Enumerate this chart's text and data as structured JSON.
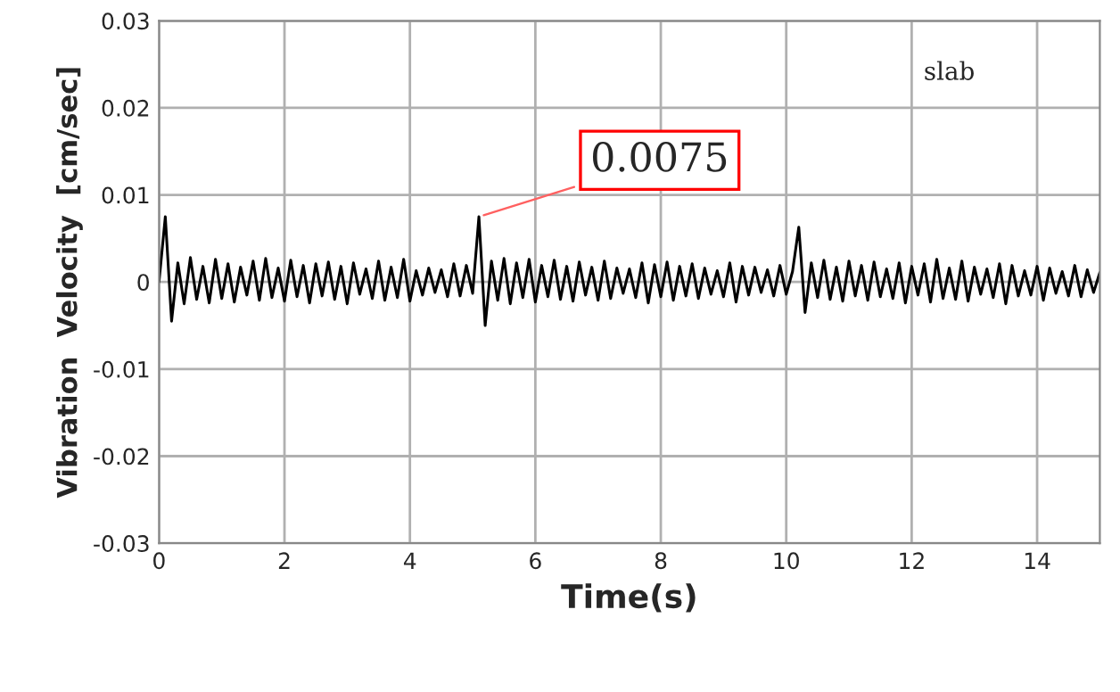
{
  "chart_data": {
    "type": "line",
    "xlabel": "Time(s)",
    "ylabel": "Vibration  Velocity  [cm/sec]",
    "xlim": [
      0,
      15
    ],
    "xticks": [
      0,
      2,
      4,
      6,
      8,
      10,
      12,
      14
    ],
    "ylim": [
      -0.03,
      0.03
    ],
    "yticks": [
      -0.03,
      -0.02,
      -0.01,
      0,
      0.01,
      0.02,
      0.03
    ],
    "grid": true,
    "annotations": [
      {
        "text": "0.0075",
        "x": 5.1,
        "y": 0.0075
      },
      "slab"
    ],
    "series": [
      {
        "color": "#000000",
        "x": [
          0,
          0.1,
          0.2,
          0.3,
          0.4,
          0.5,
          0.6,
          0.7,
          0.8,
          0.9,
          1,
          1.1,
          1.2,
          1.3,
          1.4,
          1.5,
          1.6,
          1.7,
          1.8,
          1.9,
          2,
          2.1,
          2.2,
          2.3,
          2.4,
          2.5,
          2.6,
          2.7,
          2.8,
          2.9,
          3,
          3.1,
          3.2,
          3.3,
          3.4,
          3.5,
          3.6,
          3.7,
          3.8,
          3.9,
          4,
          4.1,
          4.2,
          4.3,
          4.4,
          4.5,
          4.6,
          4.7,
          4.8,
          4.9,
          5,
          5.1,
          5.2,
          5.3,
          5.4,
          5.5,
          5.6,
          5.7,
          5.8,
          5.9,
          6,
          6.1,
          6.2,
          6.3,
          6.4,
          6.5,
          6.6,
          6.7,
          6.8,
          6.9,
          7,
          7.1,
          7.2,
          7.3,
          7.4,
          7.5,
          7.6,
          7.7,
          7.8,
          7.9,
          8,
          8.1,
          8.2,
          8.3,
          8.4,
          8.5,
          8.6,
          8.7,
          8.8,
          8.9,
          9,
          9.1,
          9.2,
          9.3,
          9.4,
          9.5,
          9.6,
          9.7,
          9.8,
          9.9,
          10,
          10.1,
          10.2,
          10.3,
          10.4,
          10.5,
          10.6,
          10.7,
          10.8,
          10.9,
          11,
          11.1,
          11.2,
          11.3,
          11.4,
          11.5,
          11.6,
          11.7,
          11.8,
          11.9,
          12,
          12.1,
          12.2,
          12.3,
          12.4,
          12.5,
          12.6,
          12.7,
          12.8,
          12.9,
          13,
          13.1,
          13.2,
          13.3,
          13.4,
          13.5,
          13.6,
          13.7,
          13.8,
          13.9,
          14,
          14.1,
          14.2,
          14.3,
          14.4,
          14.5,
          14.6,
          14.7,
          14.8,
          14.9,
          15
        ],
        "values": [
          0,
          0.0075,
          -0.0045,
          0.0022,
          -0.0025,
          0.0028,
          -0.002,
          0.0018,
          -0.0024,
          0.0026,
          -0.0019,
          0.0021,
          -0.0023,
          0.0017,
          -0.0015,
          0.0024,
          -0.0021,
          0.0027,
          -0.0018,
          0.0016,
          -0.0022,
          0.0025,
          -0.0017,
          0.0019,
          -0.0024,
          0.0021,
          -0.0016,
          0.0023,
          -0.002,
          0.0018,
          -0.0025,
          0.0022,
          -0.0014,
          0.0015,
          -0.0019,
          0.0024,
          -0.0021,
          0.0017,
          -0.0018,
          0.0026,
          -0.0022,
          0.0013,
          -0.0015,
          0.0016,
          -0.0012,
          0.0014,
          -0.0017,
          0.0021,
          -0.0016,
          0.0019,
          -0.0013,
          0.0075,
          -0.005,
          0.0024,
          -0.0021,
          0.0027,
          -0.0025,
          0.0022,
          -0.0018,
          0.0026,
          -0.0023,
          0.0019,
          -0.0017,
          0.0025,
          -0.002,
          0.0018,
          -0.0022,
          0.0023,
          -0.0015,
          0.0017,
          -0.0021,
          0.0024,
          -0.0019,
          0.0016,
          -0.0013,
          0.0015,
          -0.0018,
          0.0022,
          -0.0024,
          0.002,
          -0.0017,
          0.0023,
          -0.0021,
          0.0018,
          -0.0016,
          0.0021,
          -0.0019,
          0.0016,
          -0.0014,
          0.0013,
          -0.0017,
          0.0022,
          -0.0023,
          0.0018,
          -0.0015,
          0.0017,
          -0.0012,
          0.0014,
          -0.0016,
          0.0019,
          -0.0014,
          0.0012,
          0.0063,
          -0.0035,
          0.0022,
          -0.0018,
          0.0025,
          -0.002,
          0.0017,
          -0.0022,
          0.0024,
          -0.0016,
          0.0019,
          -0.0021,
          0.0023,
          -0.0017,
          0.0015,
          -0.0019,
          0.0022,
          -0.0024,
          0.0018,
          -0.0015,
          0.0021,
          -0.0023,
          0.0026,
          -0.0019,
          0.0016,
          -0.002,
          0.0024,
          -0.0022,
          0.0017,
          -0.0014,
          0.0015,
          -0.0018,
          0.0021,
          -0.0025,
          0.0019,
          -0.0016,
          0.0013,
          -0.0015,
          0.0018,
          -0.0021,
          0.0016,
          -0.0013,
          0.0012,
          -0.0016,
          0.0019,
          -0.0017,
          0.0014,
          -0.0012,
          0.0011
        ]
      }
    ]
  }
}
